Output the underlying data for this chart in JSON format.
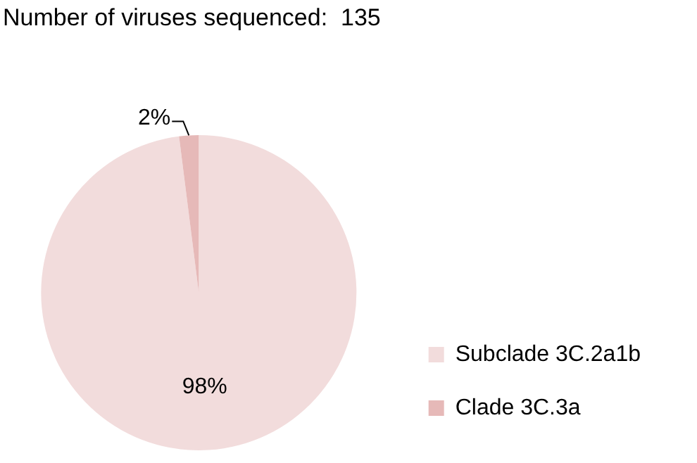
{
  "chart_data": {
    "type": "pie",
    "title": "Number of viruses sequenced:  135",
    "categories": [
      "Subclade 3C.2a1b",
      "Clade 3C.3a"
    ],
    "values": [
      98,
      2
    ],
    "colors": [
      "#f2dcdc",
      "#e6b9b8"
    ],
    "value_labels": [
      "98%",
      "2%"
    ],
    "legend": "bottom right"
  }
}
